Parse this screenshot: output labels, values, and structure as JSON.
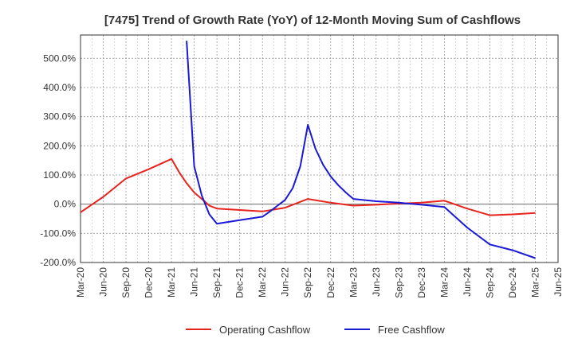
{
  "chart_data": {
    "type": "line",
    "title": "[7475]  Trend of Growth Rate (YoY) of 12-Month Moving Sum of Cashflows",
    "xlabel": "",
    "ylabel": "",
    "x_ticks": [
      "Mar-20",
      "Jun-20",
      "Sep-20",
      "Dec-20",
      "Mar-21",
      "Jun-21",
      "Sep-21",
      "Dec-21",
      "Mar-22",
      "Jun-22",
      "Sep-22",
      "Dec-22",
      "Mar-23",
      "Jun-23",
      "Sep-23",
      "Dec-23",
      "Mar-24",
      "Jun-24",
      "Sep-24",
      "Dec-24",
      "Mar-25",
      "Jun-25"
    ],
    "y_ticks": [
      "-200.0%",
      "-100.0%",
      "0.0%",
      "100.0%",
      "200.0%",
      "300.0%",
      "400.0%",
      "500.0%"
    ],
    "y_tick_values": [
      -200,
      -100,
      0,
      100,
      200,
      300,
      400,
      500
    ],
    "ylim": [
      -200,
      580
    ],
    "grid": true,
    "legend_position": "bottom",
    "series": [
      {
        "name": "Operating Cashflow",
        "color": "#e8231d",
        "points": [
          [
            "Mar-20",
            -28
          ],
          [
            "Jun-20",
            25
          ],
          [
            "Sep-20",
            88
          ],
          [
            "Dec-20",
            120
          ],
          [
            "Mar-21",
            155
          ],
          [
            "Apr-21",
            110
          ],
          [
            "May-21",
            72
          ],
          [
            "Jun-21",
            40
          ],
          [
            "Jul-21",
            18
          ],
          [
            "Aug-21",
            -5
          ],
          [
            "Sep-21",
            -15
          ],
          [
            "Dec-21",
            -20
          ],
          [
            "Mar-22",
            -25
          ],
          [
            "Jun-22",
            -12
          ],
          [
            "Sep-22",
            18
          ],
          [
            "Dec-22",
            5
          ],
          [
            "Mar-23",
            -5
          ],
          [
            "Jun-23",
            -2
          ],
          [
            "Sep-23",
            2
          ],
          [
            "Dec-23",
            5
          ],
          [
            "Mar-24",
            12
          ],
          [
            "Jun-24",
            -15
          ],
          [
            "Sep-24",
            -38
          ],
          [
            "Dec-24",
            -35
          ],
          [
            "Mar-25",
            -30
          ]
        ]
      },
      {
        "name": "Free Cashflow",
        "color": "#1a1ad6",
        "points": [
          [
            "May-21",
            560
          ],
          [
            "Jun-21",
            130
          ],
          [
            "Jul-21",
            30
          ],
          [
            "Aug-21",
            -35
          ],
          [
            "Sep-21",
            -67
          ],
          [
            "Dec-21",
            -55
          ],
          [
            "Mar-22",
            -43
          ],
          [
            "Apr-22",
            -25
          ],
          [
            "May-22",
            -5
          ],
          [
            "Jun-22",
            15
          ],
          [
            "Jul-22",
            55
          ],
          [
            "Aug-22",
            130
          ],
          [
            "Sep-22",
            272
          ],
          [
            "Oct-22",
            190
          ],
          [
            "Nov-22",
            135
          ],
          [
            "Dec-22",
            95
          ],
          [
            "Jan-23",
            65
          ],
          [
            "Feb-23",
            40
          ],
          [
            "Mar-23",
            18
          ],
          [
            "Jun-23",
            10
          ],
          [
            "Sep-23",
            5
          ],
          [
            "Dec-23",
            -2
          ],
          [
            "Mar-24",
            -10
          ],
          [
            "Jun-24",
            -80
          ],
          [
            "Sep-24",
            -138
          ],
          [
            "Dec-24",
            -158
          ],
          [
            "Mar-25",
            -185
          ]
        ]
      }
    ]
  }
}
